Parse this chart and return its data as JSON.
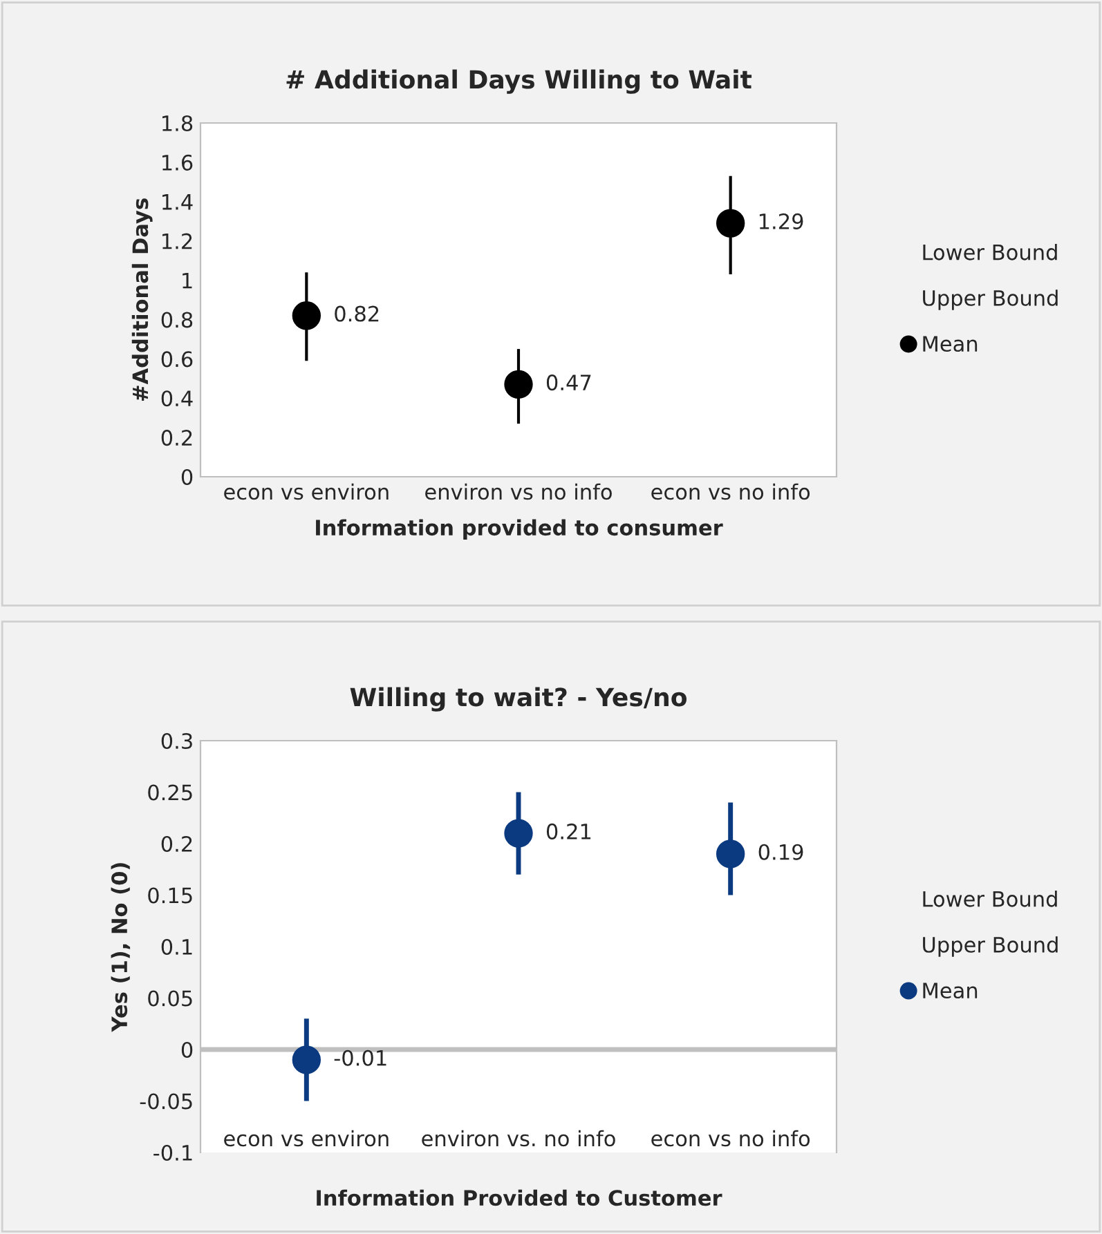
{
  "chart_data": [
    {
      "type": "scatter",
      "title": "# Additional Days Willing to Wait",
      "xlabel": "Information provided to consumer",
      "ylabel": "#Additional Days",
      "categories": [
        "econ vs environ",
        "environ vs no info",
        "econ vs no info"
      ],
      "series": [
        {
          "name": "Lower Bound",
          "values": [
            null,
            null,
            null
          ]
        },
        {
          "name": "Upper Bound",
          "values": [
            null,
            null,
            null
          ]
        },
        {
          "name": "Mean",
          "color": "#000000",
          "values": [
            0.82,
            0.47,
            1.29
          ],
          "errors": [
            [
              0.59,
              1.04
            ],
            [
              0.27,
              0.65
            ],
            [
              1.03,
              1.53
            ]
          ]
        }
      ],
      "ylim": [
        0,
        1.8
      ],
      "yticks": [
        0,
        0.2,
        0.4,
        0.6,
        0.8,
        1,
        1.2,
        1.4,
        1.6,
        1.8
      ],
      "data_labels": true,
      "marker": "circle",
      "legend": "right",
      "grid": false
    },
    {
      "type": "scatter",
      "title": "Willing to wait? - Yes/no",
      "xlabel": "Information Provided to Customer",
      "ylabel": "Yes (1), No (0)",
      "categories": [
        "econ vs environ",
        "environ vs. no info",
        "econ vs no info"
      ],
      "series": [
        {
          "name": "Lower Bound",
          "values": [
            null,
            null,
            null
          ]
        },
        {
          "name": "Upper Bound",
          "values": [
            null,
            null,
            null
          ]
        },
        {
          "name": "Mean",
          "color": "#0b3a80",
          "values": [
            -0.01,
            0.21,
            0.19
          ],
          "errors": [
            [
              -0.05,
              0.03
            ],
            [
              0.17,
              0.25
            ],
            [
              0.15,
              0.24
            ]
          ]
        }
      ],
      "ref_lines": [
        {
          "axis": "y",
          "value": 0,
          "color": "#bfbfbf"
        }
      ],
      "ylim": [
        -0.1,
        0.3
      ],
      "yticks": [
        -0.1,
        -0.05,
        0,
        0.05,
        0.1,
        0.15,
        0.2,
        0.25,
        0.3
      ],
      "data_labels": true,
      "marker": "circle",
      "legend": "right",
      "grid": false
    }
  ]
}
